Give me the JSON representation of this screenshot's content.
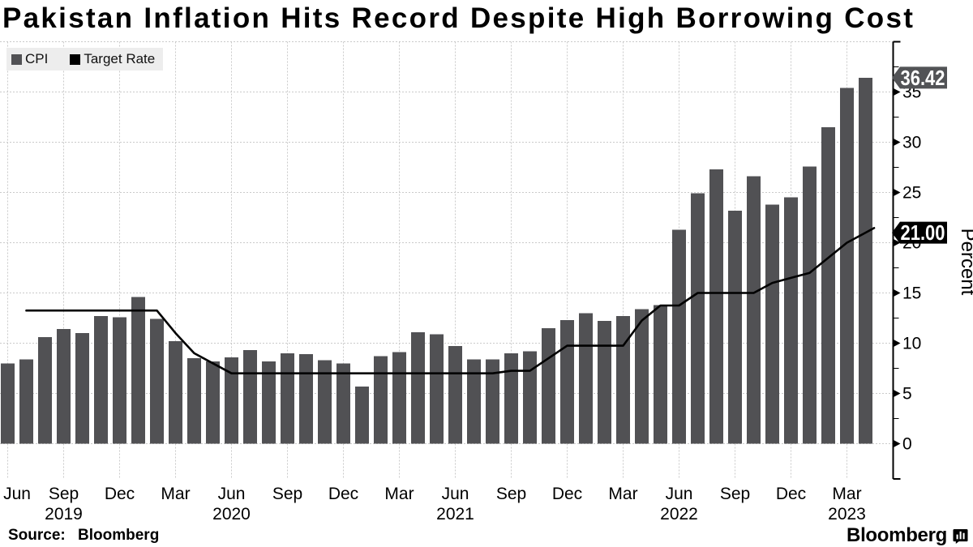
{
  "page": {
    "title": "Pakistan Inflation Hits Record Despite High Borrowing Cost"
  },
  "legend": {
    "items": [
      {
        "label": "CPI",
        "color": "#515154"
      },
      {
        "label": "Target Rate",
        "color": "#000000"
      }
    ]
  },
  "footer": {
    "source": "Source: Bloomberg",
    "brand": "Bloomberg"
  },
  "chart_data": {
    "type": "bar+line",
    "title": "Pakistan Inflation Hits Record Despite High Borrowing Cost",
    "ylabel": "Percent",
    "months": [
      "Jun 2019",
      "Jul 2019",
      "Aug 2019",
      "Sep 2019",
      "Oct 2019",
      "Nov 2019",
      "Dec 2019",
      "Jan 2020",
      "Feb 2020",
      "Mar 2020",
      "Apr 2020",
      "May 2020",
      "Jun 2020",
      "Jul 2020",
      "Aug 2020",
      "Sep 2020",
      "Oct 2020",
      "Nov 2020",
      "Dec 2020",
      "Jan 2021",
      "Feb 2021",
      "Mar 2021",
      "Apr 2021",
      "May 2021",
      "Jun 2021",
      "Jul 2021",
      "Aug 2021",
      "Sep 2021",
      "Oct 2021",
      "Nov 2021",
      "Dec 2021",
      "Jan 2022",
      "Feb 2022",
      "Mar 2022",
      "Apr 2022",
      "May 2022",
      "Jun 2022",
      "Jul 2022",
      "Aug 2022",
      "Sep 2022",
      "Oct 2022",
      "Nov 2022",
      "Dec 2022",
      "Jan 2023",
      "Feb 2023",
      "Mar 2023",
      "Apr 2023"
    ],
    "series": [
      {
        "name": "CPI",
        "type": "bar",
        "color": "#515154",
        "values": [
          8.0,
          8.4,
          10.6,
          11.4,
          11.0,
          12.7,
          12.6,
          14.6,
          12.4,
          10.2,
          8.5,
          8.2,
          8.6,
          9.3,
          8.2,
          9.0,
          8.9,
          8.3,
          8.0,
          5.7,
          8.7,
          9.1,
          11.1,
          10.9,
          9.7,
          8.4,
          8.4,
          9.0,
          9.2,
          11.5,
          12.3,
          13.0,
          12.2,
          12.7,
          13.4,
          13.8,
          21.3,
          24.9,
          27.3,
          23.2,
          26.6,
          23.8,
          24.5,
          27.6,
          31.5,
          35.4,
          36.42
        ]
      },
      {
        "name": "Target Rate",
        "type": "line",
        "color": "#000000",
        "values": [
          null,
          13.25,
          13.25,
          13.25,
          13.25,
          13.25,
          13.25,
          13.25,
          13.25,
          11.0,
          9.0,
          8.0,
          7.0,
          7.0,
          7.0,
          7.0,
          7.0,
          7.0,
          7.0,
          7.0,
          7.0,
          7.0,
          7.0,
          7.0,
          7.0,
          7.0,
          7.0,
          7.25,
          7.25,
          8.5,
          9.75,
          9.75,
          9.75,
          9.75,
          12.25,
          13.75,
          13.75,
          15.0,
          15.0,
          15.0,
          15.0,
          16.0,
          16.5,
          17.0,
          18.5,
          20.0,
          21.0
        ]
      }
    ],
    "y_ticks": [
      0,
      5,
      10,
      15,
      20,
      25,
      30,
      35
    ],
    "y_top": 40,
    "y_minor_step": 2.5,
    "x_ticks": [
      {
        "i": 0,
        "label": "Jun"
      },
      {
        "i": 3,
        "label": "Sep"
      },
      {
        "i": 6,
        "label": "Dec"
      },
      {
        "i": 9,
        "label": "Mar"
      },
      {
        "i": 12,
        "label": "Jun"
      },
      {
        "i": 15,
        "label": "Sep"
      },
      {
        "i": 18,
        "label": "Dec"
      },
      {
        "i": 21,
        "label": "Mar"
      },
      {
        "i": 24,
        "label": "Jun"
      },
      {
        "i": 27,
        "label": "Sep"
      },
      {
        "i": 30,
        "label": "Dec"
      },
      {
        "i": 33,
        "label": "Mar"
      },
      {
        "i": 36,
        "label": "Jun"
      },
      {
        "i": 39,
        "label": "Sep"
      },
      {
        "i": 42,
        "label": "Dec"
      },
      {
        "i": 45,
        "label": "Mar"
      }
    ],
    "year_ticks": [
      {
        "i": 3,
        "label": "2019"
      },
      {
        "i": 12,
        "label": "2020"
      },
      {
        "i": 24,
        "label": "2021"
      },
      {
        "i": 36,
        "label": "2022"
      },
      {
        "i": 45,
        "label": "2023"
      }
    ],
    "end_tags": [
      {
        "value": 36.42,
        "text": "36.42",
        "color": "#525356"
      },
      {
        "value": 21.0,
        "text": "21.00",
        "color": "#000000"
      }
    ],
    "grid": true,
    "legend_position": "top-left"
  }
}
